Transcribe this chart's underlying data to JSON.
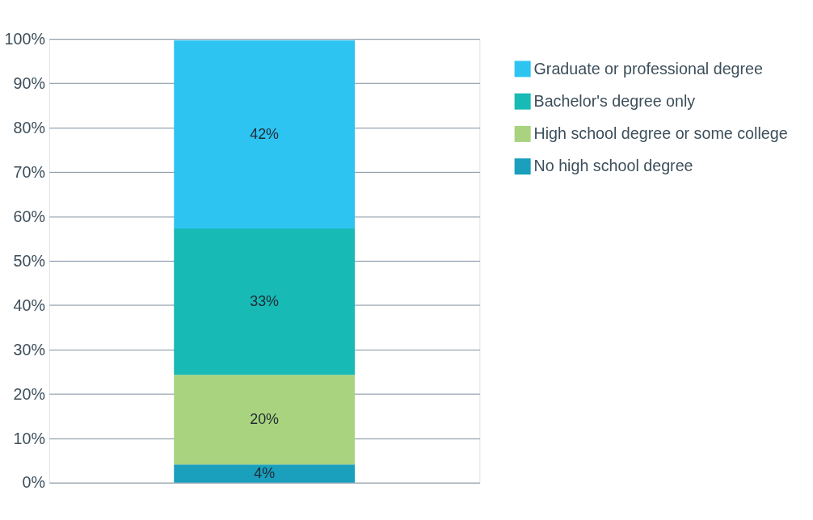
{
  "chart_data": {
    "type": "bar",
    "stacked": true,
    "categories": [
      null
    ],
    "series": [
      {
        "name": "No high school degree",
        "color": "#1a9fbd",
        "values": [
          4.1
        ],
        "value_labels": [
          "4%"
        ]
      },
      {
        "name": "High school degree or some college",
        "color": "#a9d37e",
        "values": [
          20.2
        ],
        "value_labels": [
          "20%"
        ]
      },
      {
        "name": "Bachelor's degree only",
        "color": "#17bab5",
        "values": [
          33.0
        ],
        "value_labels": [
          "33%"
        ]
      },
      {
        "name": "Graduate or professional degree",
        "color": "#2ec4f2",
        "values": [
          42.4
        ],
        "value_labels": [
          "42%"
        ]
      }
    ],
    "ylim": [
      0,
      100
    ],
    "yticks": [
      {
        "value": 0,
        "label": "0%"
      },
      {
        "value": 10,
        "label": "10%"
      },
      {
        "value": 20,
        "label": "20%"
      },
      {
        "value": 30,
        "label": "30%"
      },
      {
        "value": 40,
        "label": "40%"
      },
      {
        "value": 50,
        "label": "50%"
      },
      {
        "value": 60,
        "label": "60%"
      },
      {
        "value": 70,
        "label": "70%"
      },
      {
        "value": 80,
        "label": "80%"
      },
      {
        "value": 90,
        "label": "90%"
      },
      {
        "value": 100,
        "label": "100%"
      }
    ],
    "grid": "y",
    "legend": "right",
    "tick_labels": "y"
  }
}
